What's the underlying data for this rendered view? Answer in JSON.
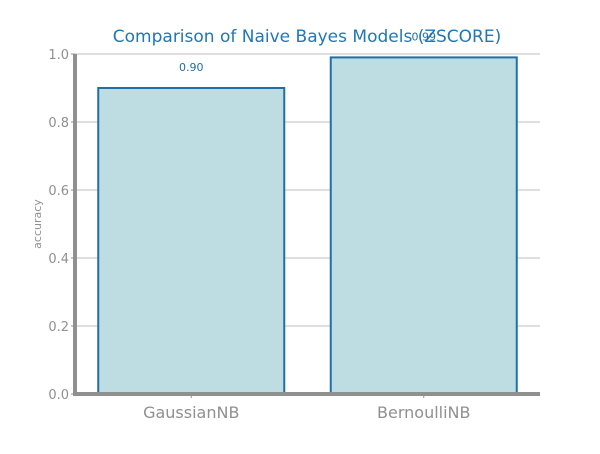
{
  "chart_data": {
    "type": "bar",
    "title": "Comparison of Naive Bayes Models (ZSCORE)",
    "xlabel": "",
    "ylabel": "accuracy",
    "categories": [
      "GaussianNB",
      "BernoulliNB"
    ],
    "values": [
      0.9,
      0.99
    ],
    "value_labels": [
      "0.90",
      "0.99"
    ],
    "ylim": [
      0.0,
      1.0
    ],
    "yticks": [
      0.0,
      0.2,
      0.4,
      0.6,
      0.8,
      1.0
    ],
    "ytick_labels": [
      "0.0",
      "0.2",
      "0.4",
      "0.6",
      "0.8",
      "1.0"
    ],
    "grid": "horizontal",
    "colors": {
      "title": "#1f77b4",
      "bar_fill": "#bedde2",
      "bar_edge": "#1f6fa8",
      "value_label": "#1f6fa8",
      "grid": "#cccccc",
      "axis": "#909090",
      "tick_label": "#909090"
    }
  }
}
